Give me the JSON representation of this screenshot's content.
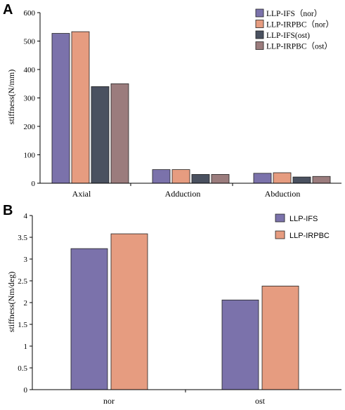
{
  "panels": [
    {
      "label": "A"
    },
    {
      "label": "B"
    }
  ],
  "chart_data": [
    {
      "type": "bar",
      "panel": "A",
      "ylabel": "stiffness(N/mm)",
      "ylim": [
        0,
        600
      ],
      "yticks": [
        0,
        100,
        200,
        300,
        400,
        500,
        600
      ],
      "categories": [
        "Axial",
        "Adduction",
        "Abduction"
      ],
      "series": [
        {
          "name": "LLP-IFS（nor）",
          "color": "#7b72ab",
          "values": [
            527,
            48,
            35
          ]
        },
        {
          "name": "LLP-IRPBC（nor）",
          "color": "#e69c80",
          "values": [
            533,
            48,
            37
          ]
        },
        {
          "name": "LLP-IFS(ost)",
          "color": "#4a5160",
          "values": [
            340,
            31,
            22
          ]
        },
        {
          "name": "LLP-IRPBC（ost）",
          "color": "#9b7c7d",
          "values": [
            350,
            31,
            24
          ]
        }
      ],
      "legend": "top-right",
      "grid": false
    },
    {
      "type": "bar",
      "panel": "B",
      "ylabel": "stiffness(Nm/deg)",
      "ylim": [
        0,
        4
      ],
      "yticks": [
        "0",
        "0.5",
        "1",
        "1.5",
        "2",
        "2.5",
        "3",
        "3.5",
        "4"
      ],
      "categories": [
        "nor",
        "ost"
      ],
      "series": [
        {
          "name": "LLP-IFS",
          "color": "#7b72ab",
          "values": [
            3.24,
            2.06
          ]
        },
        {
          "name": "LLP-IRPBC",
          "color": "#e69c80",
          "values": [
            3.58,
            2.38
          ]
        }
      ],
      "legend": "top-right",
      "grid": false
    }
  ]
}
